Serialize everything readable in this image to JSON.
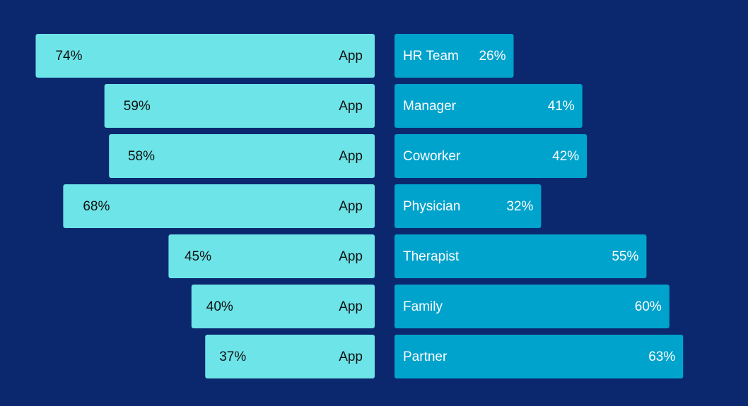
{
  "chart_data": {
    "type": "butterfly",
    "categories": [
      "HR Team",
      "Manager",
      "Coworker",
      "Physician",
      "Therapist",
      "Family",
      "Partner"
    ],
    "series": [
      {
        "name": "App",
        "color": "#6de4e8",
        "values": [
          74,
          59,
          58,
          68,
          45,
          40,
          37
        ],
        "value_labels": [
          "74%",
          "59%",
          "58%",
          "68%",
          "45%",
          "40%",
          "37%"
        ]
      },
      {
        "color": "#00a3cc",
        "values": [
          26,
          41,
          42,
          32,
          55,
          60,
          63
        ],
        "value_labels": [
          "26%",
          "41%",
          "42%",
          "32%",
          "55%",
          "60%",
          "63%"
        ]
      }
    ]
  }
}
